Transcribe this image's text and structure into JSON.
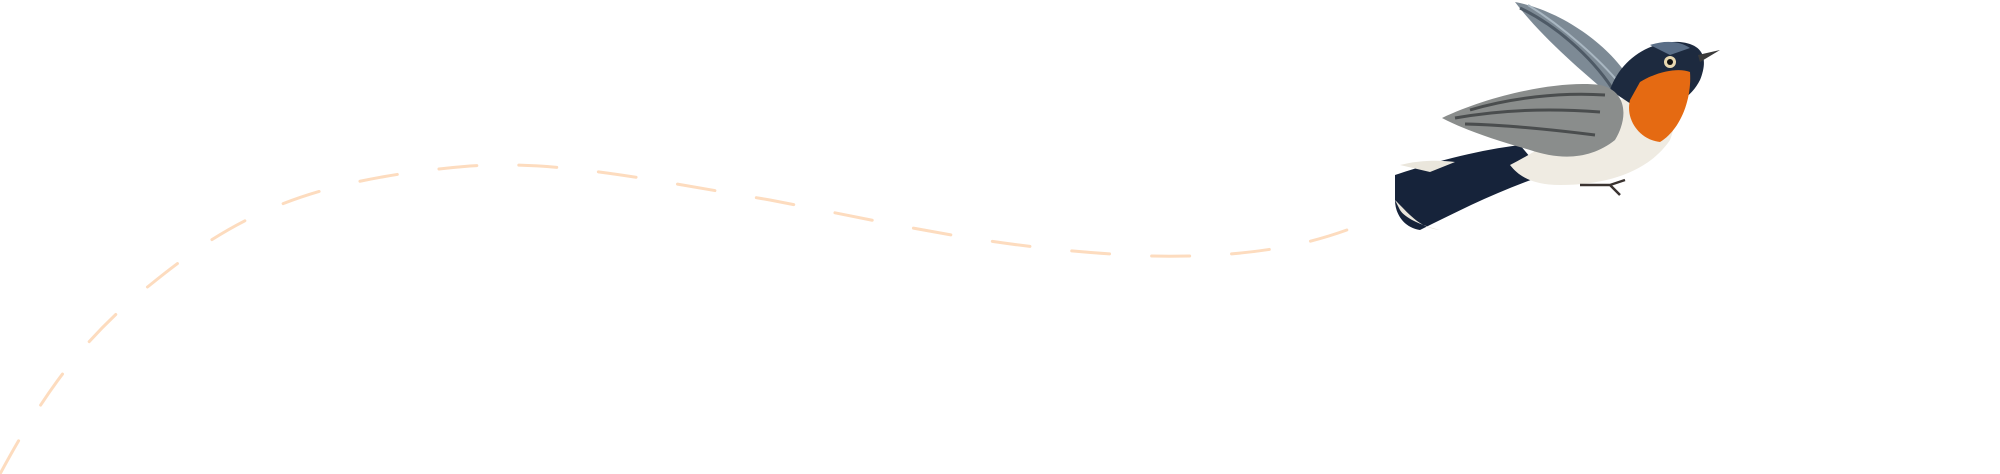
{
  "colors": {
    "background": "#ffffff",
    "flight_path": "#fddcbf",
    "bird_throat": "#e56a12",
    "bird_head": "#1d2a3f",
    "bird_wing": "#8a8d8c",
    "bird_belly": "#efebe2"
  },
  "illustration": {
    "subject": "bird-icon",
    "path_style": "dashed"
  }
}
